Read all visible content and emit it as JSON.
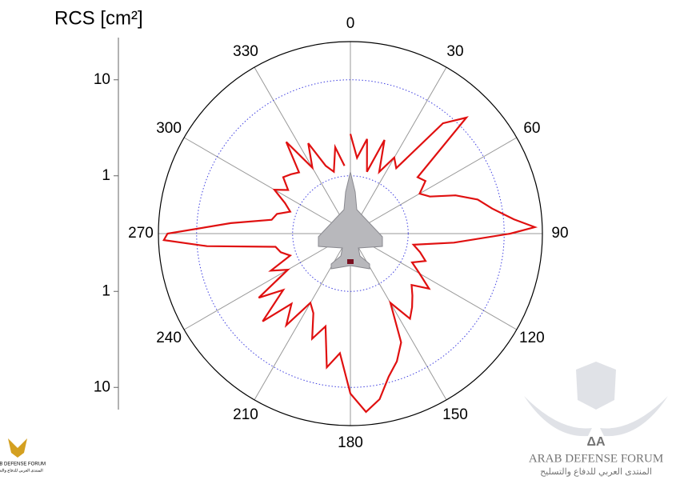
{
  "chart_data": {
    "type": "polar",
    "title": "RCS [cm²]",
    "log": true,
    "rlim": [
      0.25,
      25
    ],
    "rticks": [
      1,
      10
    ],
    "aticks": [
      0,
      30,
      60,
      90,
      120,
      150,
      180,
      210,
      240,
      270,
      300,
      330
    ],
    "color": "#e01010",
    "grid_color": "#4040e0",
    "angles": [
      0,
      5,
      10,
      15,
      20,
      25,
      30,
      35,
      40,
      45,
      50,
      55,
      60,
      65,
      70,
      75,
      80,
      85,
      88,
      90,
      95,
      100,
      105,
      110,
      115,
      120,
      125,
      130,
      135,
      140,
      145,
      150,
      155,
      160,
      165,
      170,
      175,
      180,
      185,
      190,
      195,
      200,
      205,
      210,
      215,
      220,
      225,
      230,
      235,
      240,
      245,
      250,
      255,
      260,
      265,
      268,
      270,
      275,
      280,
      285,
      290,
      295,
      300,
      305,
      310,
      315,
      320,
      325,
      330,
      335,
      340,
      345,
      350,
      355
    ],
    "values": [
      2.73,
      1.55,
      2.5,
      1.16,
      2.73,
      1.28,
      2.05,
      1.7,
      7.9,
      12.8,
      2.05,
      2.25,
      1.7,
      2.05,
      3.66,
      5.9,
      7.9,
      12.8,
      20.9,
      11.6,
      3.02,
      1.16,
      1.41,
      1.7,
      1.28,
      1.7,
      2.5,
      1.7,
      2.05,
      2.5,
      3.02,
      1.7,
      4.45,
      6.5,
      8.7,
      14.1,
      18.3,
      11.6,
      4.45,
      6.5,
      2.5,
      3.66,
      2.05,
      1.7,
      3.66,
      2.25,
      4.9,
      2.05,
      3.66,
      1.41,
      2.05,
      1.16,
      1.41,
      1.55,
      7.9,
      22,
      20.1,
      4.45,
      1.7,
      1.55,
      1.16,
      1.41,
      2.05,
      1.55,
      2.05,
      1.87,
      1.7,
      3.66,
      1.55,
      2.73,
      1.41,
      1.16,
      2.05,
      1.28
    ]
  },
  "watermark": {
    "mark": "ΔA",
    "name": "ARAB DEFENSE FORUM",
    "subtitle": "المنتدى العربي للدفاع والتسليح"
  }
}
